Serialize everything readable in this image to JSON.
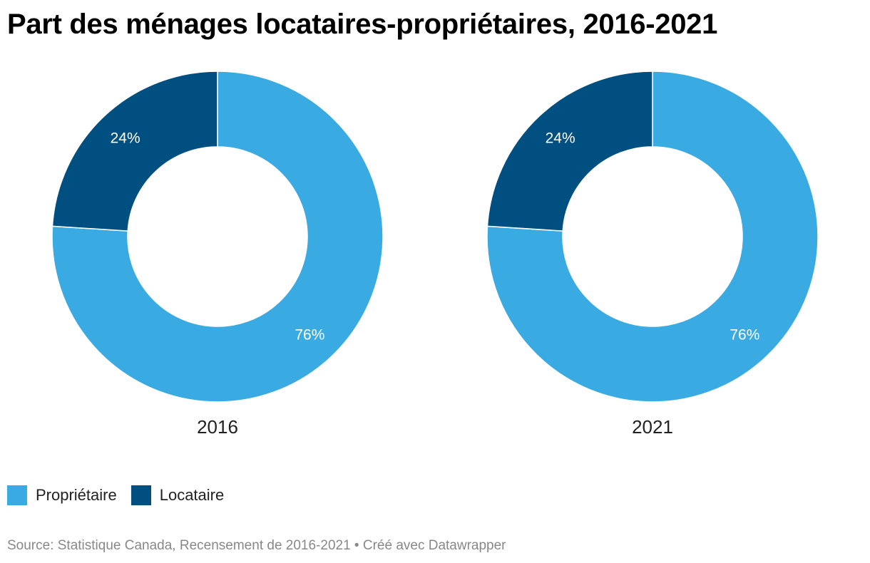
{
  "title": "Part des ménages locataires-propriétaires, 2016-2021",
  "source": "Source: Statistique Canada, Recensement de 2016-2021 • Créé avec Datawrapper",
  "colors": {
    "proprietaire": "#3aaae2",
    "locataire": "#004f81"
  },
  "legend": [
    {
      "label": "Propriétaire",
      "color": "#3aaae2"
    },
    {
      "label": "Locataire",
      "color": "#004f81"
    }
  ],
  "chart_data": [
    {
      "type": "pie",
      "donut": true,
      "label": "2016",
      "slices": [
        {
          "name": "Propriétaire",
          "value": 76,
          "label": "76%",
          "color": "#3aaae2"
        },
        {
          "name": "Locataire",
          "value": 24,
          "label": "24%",
          "color": "#004f81"
        }
      ]
    },
    {
      "type": "pie",
      "donut": true,
      "label": "2021",
      "slices": [
        {
          "name": "Propriétaire",
          "value": 76,
          "label": "76%",
          "color": "#3aaae2"
        },
        {
          "name": "Locataire",
          "value": 24,
          "label": "24%",
          "color": "#004f81"
        }
      ]
    }
  ]
}
